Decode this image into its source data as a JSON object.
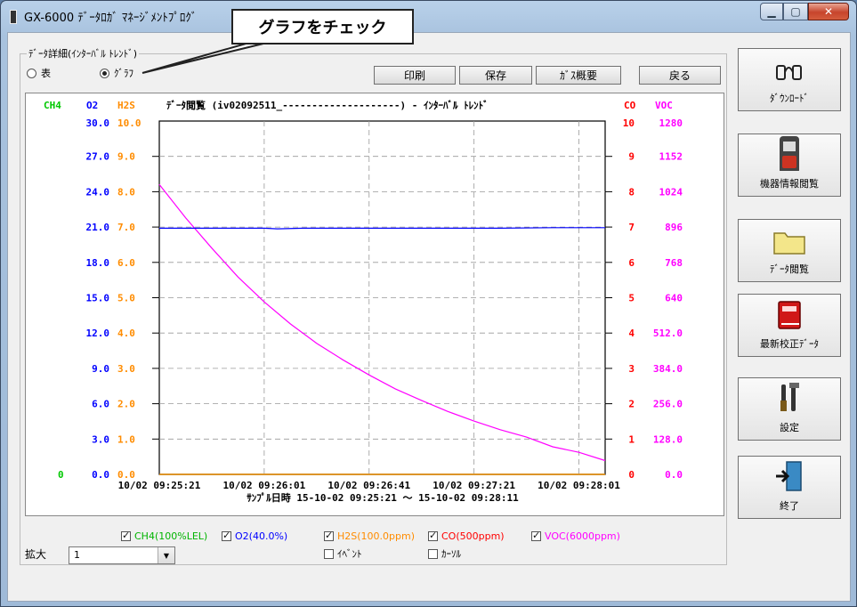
{
  "window": {
    "title": "GX-6000 ﾃﾞｰﾀﾛｶﾞ ﾏﾈｰｼﾞﾒﾝﾄﾌﾟﾛｸﾞ",
    "min_icon": "minimize-icon",
    "max_icon": "maximize-icon",
    "close_icon": "close-icon"
  },
  "callout": "グラフをチェック",
  "group_title": "ﾃﾞｰﾀ詳細(ｲﾝﾀｰﾊﾞﾙ ﾄﾚﾝﾄﾞ)",
  "view_mode": {
    "table_label": "表",
    "graph_label": "ｸﾞﾗﾌ",
    "selected": "graph"
  },
  "toolbar": {
    "print": "印刷",
    "save": "保存",
    "gas_summary": "ｶﾞｽ概要",
    "back": "戻る"
  },
  "sidebar": [
    {
      "label": "ﾀﾞｳﾝﾛｰﾄﾞ",
      "icon": "download-icon"
    },
    {
      "label": "機器情報閲覧",
      "icon": "gas-monitor-icon"
    },
    {
      "label": "ﾃﾞｰﾀ閲覧",
      "icon": "folder-icon"
    },
    {
      "label": "最新校正ﾃﾞｰﾀ",
      "icon": "calibration-book-icon"
    },
    {
      "label": "設定",
      "icon": "tools-icon"
    },
    {
      "label": "終了",
      "icon": "exit-door-icon"
    }
  ],
  "chart_data": {
    "type": "line",
    "title": "ﾃﾞｰﾀ閲覧 (iv02092511_--------------------) - ｲﾝﾀｰﾊﾞﾙ ﾄﾚﾝﾄﾞ",
    "xlabel": "ｻﾝﾌﾟﾙ日時 15-10-02 09:25:21 ～ 15-10-02 09:28:11",
    "x_ticks": [
      "10/02 09:25:21",
      "10/02 09:26:01",
      "10/02 09:26:41",
      "10/02 09:27:21",
      "10/02 09:28:01"
    ],
    "x_range": [
      "09:25:21",
      "09:28:11"
    ],
    "grid": true,
    "axes": {
      "CH4": {
        "color": "#00c800",
        "ticks": [
          "0"
        ]
      },
      "O2": {
        "color": "#0000ff",
        "ticks": [
          "0.0",
          "3.0",
          "6.0",
          "9.0",
          "12.0",
          "15.0",
          "18.0",
          "21.0",
          "24.0",
          "27.0",
          "30.0"
        ],
        "ylim": [
          0,
          30
        ]
      },
      "H2S": {
        "color": "#ff8c00",
        "ticks": [
          "0.0",
          "1.0",
          "2.0",
          "3.0",
          "4.0",
          "5.0",
          "6.0",
          "7.0",
          "8.0",
          "9.0",
          "10.0"
        ],
        "ylim": [
          0,
          10
        ]
      },
      "CO": {
        "color": "#ff0000",
        "ticks": [
          "0",
          "1",
          "2",
          "3",
          "4",
          "5",
          "6",
          "7",
          "8",
          "9",
          "10"
        ],
        "ylim": [
          0,
          10
        ]
      },
      "VOC": {
        "color": "#ff00ff",
        "ticks": [
          "0.0",
          "128.0",
          "256.0",
          "384.0",
          "512.0",
          "640",
          "768",
          "896",
          "1024",
          "1152",
          "1280"
        ],
        "ylim": [
          0,
          1280
        ]
      }
    },
    "series": [
      {
        "name": "VOC",
        "color": "#ff00ff",
        "x_seconds": [
          0,
          10,
          20,
          30,
          40,
          50,
          60,
          70,
          80,
          90,
          100,
          110,
          120,
          130,
          140,
          150,
          160,
          170
        ],
        "values": [
          1050,
          930,
          820,
          715,
          625,
          545,
          475,
          415,
          360,
          310,
          268,
          228,
          193,
          162,
          135,
          100,
          80,
          50
        ]
      },
      {
        "name": "O2",
        "color": "#0000ff",
        "x_seconds": [
          0,
          40,
          45,
          55,
          130,
          150,
          170
        ],
        "values": [
          20.9,
          20.9,
          20.85,
          20.9,
          20.9,
          20.95,
          20.95
        ]
      },
      {
        "name": "CO",
        "color": "#ff0000",
        "x_seconds": [
          0,
          170
        ],
        "values": [
          0,
          0
        ]
      },
      {
        "name": "CH4",
        "color": "#00c800",
        "x_seconds": [
          0,
          170
        ],
        "values": [
          0,
          0
        ]
      },
      {
        "name": "H2S",
        "color": "#ff8c00",
        "x_seconds": [
          0,
          170
        ],
        "values": [
          0,
          0
        ]
      }
    ]
  },
  "legend": {
    "ch4": "CH4(100%LEL)",
    "o2": "O2(40.0%)",
    "h2s": "H2S(100.0ppm)",
    "co": "CO(500ppm)",
    "voc": "VOC(6000ppm)",
    "event": "ｲﾍﾞﾝﾄ",
    "cursor": "ｶｰｿﾙ"
  },
  "zoom": {
    "label": "拡大",
    "value": "1"
  }
}
